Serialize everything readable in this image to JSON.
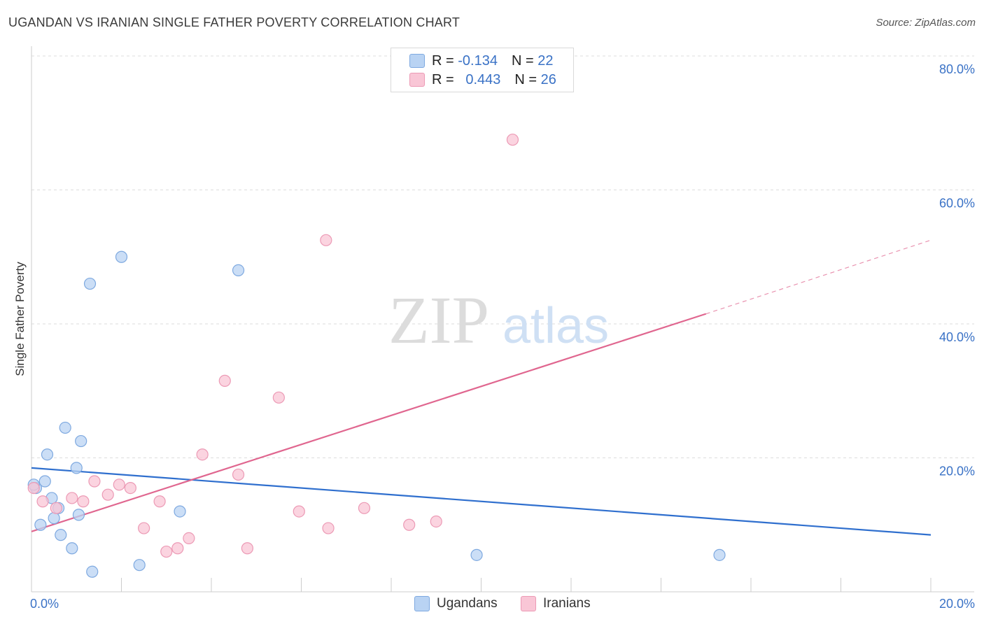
{
  "header": {
    "title": "UGANDAN VS IRANIAN SINGLE FATHER POVERTY CORRELATION CHART",
    "source": "Source: ZipAtlas.com"
  },
  "watermark": {
    "zip": "ZIP",
    "atlas": "atlas"
  },
  "legend_top": {
    "rows": [
      {
        "r_label": "R =",
        "r_value": "-0.134",
        "n_label": "N =",
        "n_value": "22"
      },
      {
        "r_label": "R =",
        "r_value": "0.443",
        "n_label": "N =",
        "n_value": "26"
      }
    ]
  },
  "legend_bottom": {
    "items": [
      "Ugandans",
      "Iranians"
    ]
  },
  "colors": {
    "ugandans_fill": "#b9d3f3",
    "ugandans_stroke": "#7ea9e0",
    "ugandans_line": "#2f6fce",
    "iranians_fill": "#f9c6d6",
    "iranians_stroke": "#ec9ab5",
    "iranians_line": "#e0668f",
    "axis_text": "#3a72c6",
    "grid": "#dddddd"
  },
  "chart_data": {
    "type": "scatter",
    "title": "UGANDAN VS IRANIAN SINGLE FATHER POVERTY CORRELATION CHART",
    "xlabel": "",
    "ylabel": "Single Father Poverty",
    "xlim": [
      0,
      20
    ],
    "ylim": [
      0,
      80
    ],
    "x_tick_labels": [
      "0.0%",
      "20.0%"
    ],
    "y_ticks": [
      20,
      40,
      60,
      80
    ],
    "y_tick_labels": [
      "20.0%",
      "40.0%",
      "60.0%",
      "80.0%"
    ],
    "grid": true,
    "legend_position": "top-center",
    "series": [
      {
        "name": "Ugandans",
        "r": -0.134,
        "n": 22,
        "points": [
          [
            0.1,
            15.5
          ],
          [
            0.2,
            10
          ],
          [
            0.3,
            16.5
          ],
          [
            0.35,
            20.5
          ],
          [
            0.45,
            14
          ],
          [
            0.5,
            11
          ],
          [
            0.6,
            12.5
          ],
          [
            0.65,
            8.5
          ],
          [
            0.75,
            24.5
          ],
          [
            0.9,
            6.5
          ],
          [
            1.0,
            18.5
          ],
          [
            1.05,
            11.5
          ],
          [
            1.1,
            22.5
          ],
          [
            1.3,
            46
          ],
          [
            1.35,
            3
          ],
          [
            2.0,
            50
          ],
          [
            2.4,
            4
          ],
          [
            3.3,
            12
          ],
          [
            4.6,
            48
          ],
          [
            9.9,
            5.5
          ],
          [
            15.3,
            5.5
          ],
          [
            0.05,
            16
          ]
        ],
        "trend": {
          "x0": 0,
          "y0": 18.5,
          "x1": 20,
          "y1": 8.5,
          "style": "solid"
        }
      },
      {
        "name": "Iranians",
        "r": 0.443,
        "n": 26,
        "points": [
          [
            0.05,
            15.5
          ],
          [
            0.25,
            13.5
          ],
          [
            0.55,
            12.5
          ],
          [
            0.9,
            14
          ],
          [
            1.15,
            13.5
          ],
          [
            1.4,
            16.5
          ],
          [
            1.7,
            14.5
          ],
          [
            1.95,
            16
          ],
          [
            2.2,
            15.5
          ],
          [
            2.5,
            9.5
          ],
          [
            2.85,
            13.5
          ],
          [
            3.0,
            6
          ],
          [
            3.25,
            6.5
          ],
          [
            3.5,
            8
          ],
          [
            3.8,
            20.5
          ],
          [
            4.3,
            31.5
          ],
          [
            4.6,
            17.5
          ],
          [
            4.8,
            6.5
          ],
          [
            5.5,
            29
          ],
          [
            5.95,
            12
          ],
          [
            6.55,
            52.5
          ],
          [
            6.6,
            9.5
          ],
          [
            7.4,
            12.5
          ],
          [
            8.4,
            10
          ],
          [
            9.0,
            10.5
          ],
          [
            10.7,
            67.5
          ]
        ],
        "trend": {
          "x0": 0,
          "y0": 9.0,
          "x1": 15.0,
          "y1": 41.5,
          "style": "solid",
          "extension": {
            "x1": 20,
            "y1": 52.5,
            "style": "dashed"
          }
        }
      }
    ]
  }
}
